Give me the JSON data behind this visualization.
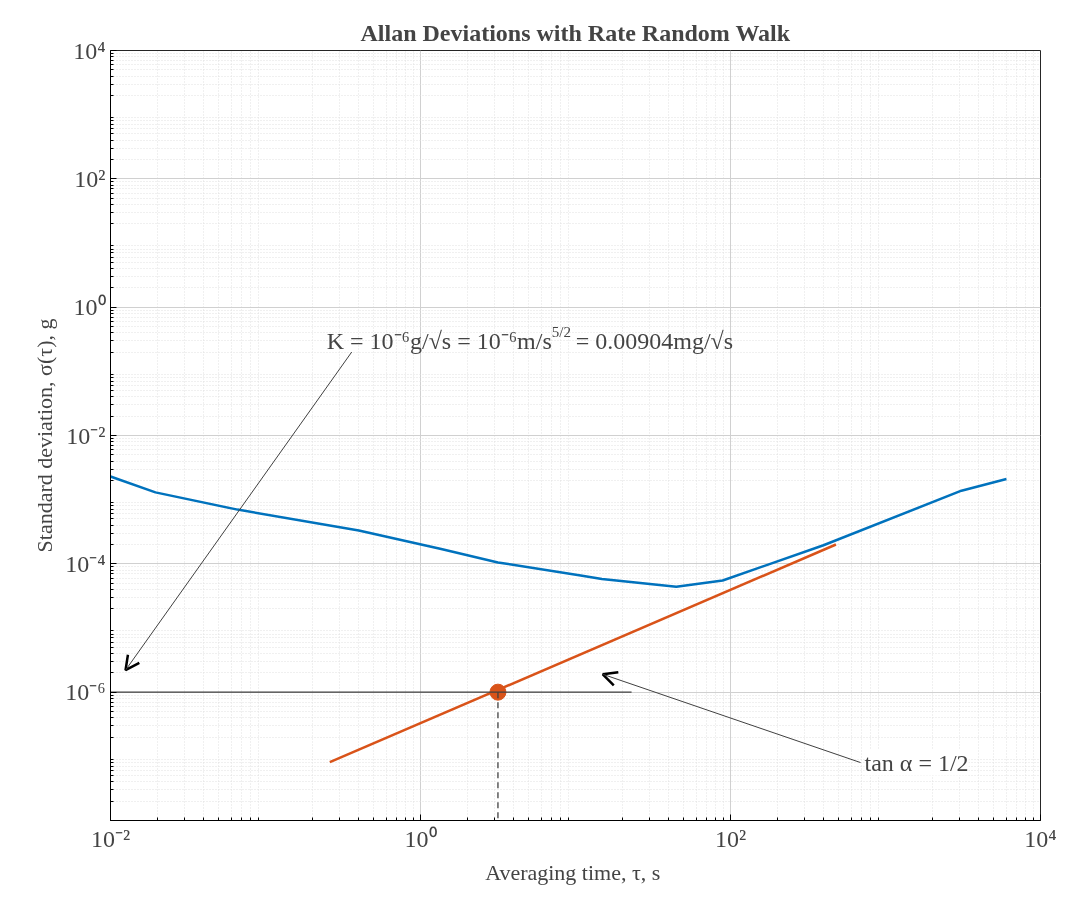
{
  "chart_data": {
    "type": "line",
    "title": "Allan Deviations with Rate Random Walk",
    "xlabel": "Averaging time,  τ, s",
    "ylabel": "Standard deviation, σ(τ), g",
    "log": "xy",
    "grid": true,
    "xlim": [
      0.01,
      10000
    ],
    "xticks": [
      {
        "value": 0.01,
        "label": "10⁻²"
      },
      {
        "value": 1,
        "label": "10⁰"
      },
      {
        "value": 100,
        "label": "10²"
      },
      {
        "value": 10000,
        "label": "10⁴"
      }
    ],
    "ylim": [
      1e-08,
      10000
    ],
    "yticks": [
      {
        "value": 1e-08,
        "label": null
      },
      {
        "value": 1e-06,
        "label": "10⁻⁶"
      },
      {
        "value": 0.0001,
        "label": "10⁻⁴"
      },
      {
        "value": 0.01,
        "label": "10⁻²"
      },
      {
        "value": 1,
        "label": "10⁰"
      },
      {
        "value": 100,
        "label": "10²"
      },
      {
        "value": 10000,
        "label": "10⁴"
      }
    ],
    "series": [
      {
        "color": "#0072bd",
        "x": [
          0.01,
          0.0195,
          0.066,
          0.4,
          1.36,
          3.16,
          10.8,
          14.8,
          44.7,
          89,
          398,
          3090,
          6030
        ],
        "values": [
          0.0023,
          0.0013,
          0.0007,
          0.00033,
          0.00017,
          0.000105,
          6.6e-05,
          5.8e-05,
          4.4e-05,
          5.5e-05,
          0.000195,
          0.00138,
          0.0021
        ]
      },
      {
        "color": "#d95319",
        "x": [
          0.26,
          479
        ],
        "values": [
          8.1e-08,
          0.0002
        ]
      },
      {
        "type": "scatter",
        "color": "#d95319",
        "marker": "circle",
        "x": [
          3.16
        ],
        "values": [
          1e-06
        ]
      },
      {
        "color": "#404040",
        "x": [
          0.01,
          23
        ],
        "values": [
          1e-06,
          1e-06
        ]
      },
      {
        "color": "#404040",
        "line_style": "dashed",
        "x": [
          3.16,
          3.16
        ],
        "values": [
          1e-06,
          1e-08
        ]
      }
    ],
    "annotations": [
      "K = 10⁻⁶g/√s = 10⁻⁶m/s$^{5/2}$ = 0.00904mg/√s",
      "tan α = 1/2"
    ]
  }
}
